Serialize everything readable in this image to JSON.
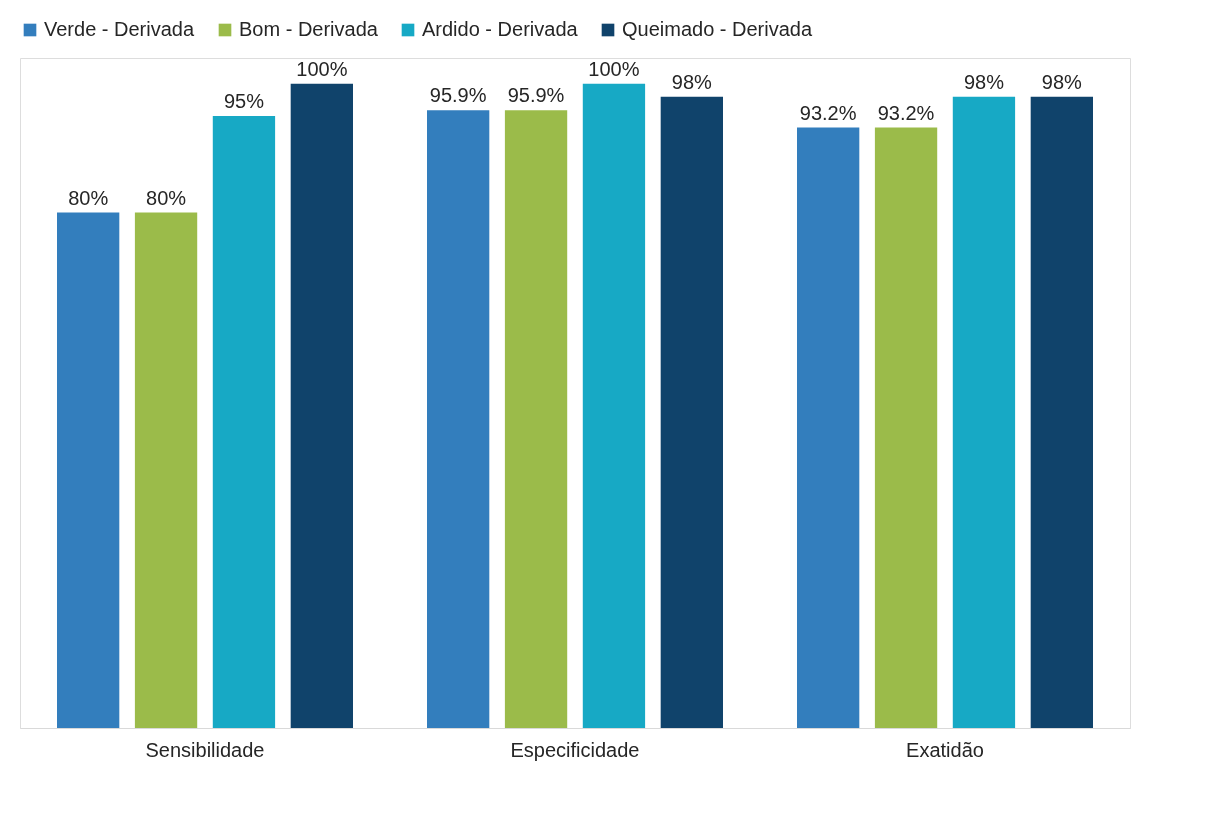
{
  "chart_data": {
    "type": "bar",
    "categories": [
      "Sensibilidade",
      "Especificidade",
      "Exatidão"
    ],
    "series": [
      {
        "name": "Verde - Derivada",
        "color": "#337ebd",
        "values": [
          80,
          95.9,
          93.2
        ],
        "value_labels": [
          "80%",
          "95.9%",
          "93.2%"
        ]
      },
      {
        "name": "Bom - Derivada",
        "color": "#9bbb4a",
        "values": [
          80,
          95.9,
          93.2
        ],
        "value_labels": [
          "80%",
          "95.9%",
          "93.2%"
        ]
      },
      {
        "name": "Ardido - Derivada",
        "color": "#17a9c5",
        "values": [
          95,
          100,
          98
        ],
        "value_labels": [
          "95%",
          "100%",
          "98%"
        ]
      },
      {
        "name": "Queimado - Derivada",
        "color": "#10436b",
        "values": [
          100,
          98,
          98
        ],
        "value_labels": [
          "100%",
          "98%",
          "98%"
        ]
      }
    ],
    "legend": "top",
    "grid": false,
    "tick_labels": "x"
  }
}
